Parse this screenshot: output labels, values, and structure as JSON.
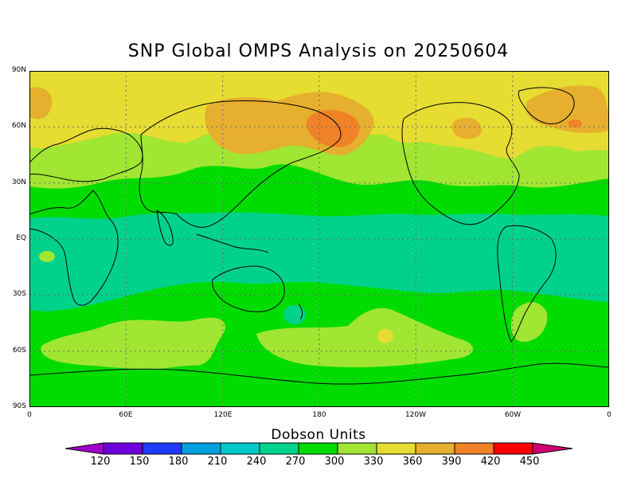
{
  "title": "SNP Global OMPS Analysis on 20250604",
  "axes": {
    "lat_labels": [
      "90N",
      "60N",
      "30N",
      "EQ",
      "30S",
      "60S",
      "90S"
    ],
    "lon_labels": [
      "0",
      "60E",
      "120E",
      "180",
      "120W",
      "60W",
      "0"
    ]
  },
  "colorbar": {
    "title": "Dobson Units",
    "labels": [
      "120",
      "150",
      "180",
      "210",
      "240",
      "270",
      "300",
      "330",
      "360",
      "390",
      "420",
      "450"
    ],
    "colors": [
      "#a000c8",
      "#6e00dc",
      "#1e3cff",
      "#00a0dc",
      "#00c8c8",
      "#00d28c",
      "#00dc00",
      "#a0e632",
      "#e6dc32",
      "#e6af2d",
      "#f08228",
      "#fa0000",
      "#d2006e"
    ]
  },
  "map": {
    "projection": "cylindrical equidistant",
    "grid": true,
    "regions": [
      {
        "name": "high-north-band",
        "value_band": "330-360"
      },
      {
        "name": "siberia-pacific-high",
        "value_band": "360-390"
      },
      {
        "name": "kamchatka-max",
        "value_band": "390-420"
      },
      {
        "name": "tropics",
        "value_band": "270-300"
      },
      {
        "name": "southern-mid-latitudes",
        "value_band": "300-330"
      }
    ]
  }
}
